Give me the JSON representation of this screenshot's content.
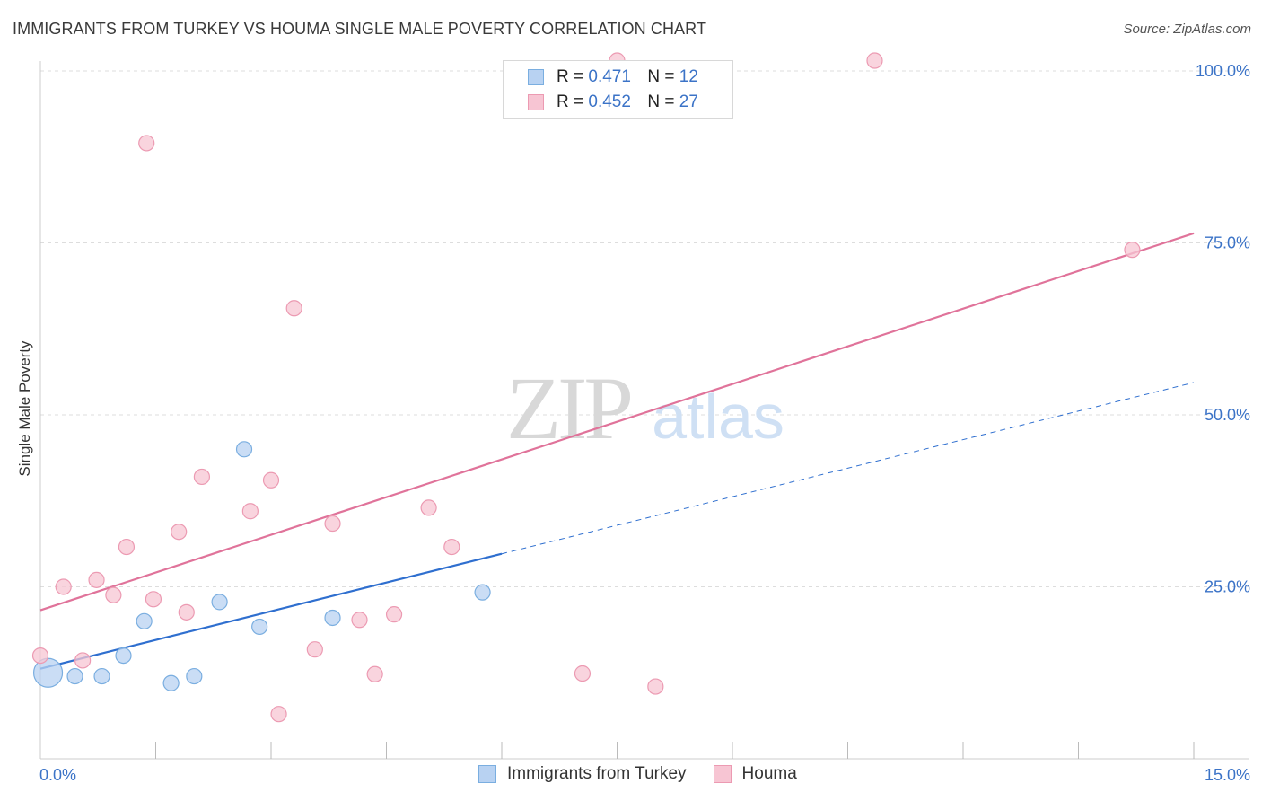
{
  "title": "IMMIGRANTS FROM TURKEY VS HOUMA SINGLE MALE POVERTY CORRELATION CHART",
  "source": "Source: ZipAtlas.com",
  "watermark": {
    "zip": "ZIP",
    "atlas": "atlas"
  },
  "legend_top": {
    "r_label": "R =",
    "n_label": "N =",
    "rows": [
      {
        "r": "0.471",
        "n": "12"
      },
      {
        "r": "0.452",
        "n": "27"
      }
    ]
  },
  "colors": {
    "blue_fill": "#b8d2f2",
    "blue_stroke": "#7aaee0",
    "blue_line": "#2f6fcf",
    "pink_fill": "#f7c5d3",
    "pink_stroke": "#ec9ab2",
    "pink_line": "#e0739a",
    "tick_label": "#3b73c7",
    "grid": "#dddddd"
  },
  "chart_data": {
    "type": "scatter",
    "title": "IMMIGRANTS FROM TURKEY VS HOUMA SINGLE MALE POVERTY CORRELATION CHART",
    "xlabel": "",
    "ylabel": "Single Male Poverty",
    "xlim": [
      0,
      15
    ],
    "ylim": [
      0,
      100
    ],
    "x_tick_labels": [
      {
        "value": 0,
        "label": "0.0%"
      },
      {
        "value": 15,
        "label": "15.0%"
      }
    ],
    "y_tick_labels": [
      {
        "value": 25,
        "label": "25.0%"
      },
      {
        "value": 50,
        "label": "50.0%"
      },
      {
        "value": 75,
        "label": "75.0%"
      },
      {
        "value": 100,
        "label": "100.0%"
      }
    ],
    "series": [
      {
        "name": "Immigrants from Turkey",
        "color": "blue",
        "points": [
          {
            "x": 0.1,
            "y": 12.5,
            "size": "large"
          },
          {
            "x": 0.45,
            "y": 12.0
          },
          {
            "x": 0.8,
            "y": 12.0
          },
          {
            "x": 1.08,
            "y": 15.0
          },
          {
            "x": 1.35,
            "y": 20.0
          },
          {
            "x": 1.7,
            "y": 11.0
          },
          {
            "x": 2.0,
            "y": 12.0
          },
          {
            "x": 2.33,
            "y": 22.8
          },
          {
            "x": 2.65,
            "y": 45.0
          },
          {
            "x": 2.85,
            "y": 19.2
          },
          {
            "x": 3.8,
            "y": 20.5
          },
          {
            "x": 5.75,
            "y": 24.2
          }
        ],
        "trend": {
          "x0": 0,
          "y0": 13.1,
          "x1": 6.0,
          "y1": 29.8,
          "dash_to_x": 15,
          "dash_to_y": 54.7
        }
      },
      {
        "name": "Houma",
        "color": "pink",
        "points": [
          {
            "x": 0.0,
            "y": 15.0
          },
          {
            "x": 0.3,
            "y": 25.0
          },
          {
            "x": 0.55,
            "y": 14.3
          },
          {
            "x": 0.73,
            "y": 26.0
          },
          {
            "x": 0.95,
            "y": 23.8
          },
          {
            "x": 1.12,
            "y": 30.8
          },
          {
            "x": 1.38,
            "y": 89.5
          },
          {
            "x": 1.47,
            "y": 23.2
          },
          {
            "x": 1.8,
            "y": 33.0
          },
          {
            "x": 1.9,
            "y": 21.3
          },
          {
            "x": 2.1,
            "y": 41.0
          },
          {
            "x": 2.73,
            "y": 36.0
          },
          {
            "x": 3.0,
            "y": 40.5
          },
          {
            "x": 3.1,
            "y": 6.5
          },
          {
            "x": 3.3,
            "y": 65.5
          },
          {
            "x": 3.57,
            "y": 15.9
          },
          {
            "x": 3.8,
            "y": 34.2
          },
          {
            "x": 4.15,
            "y": 20.2
          },
          {
            "x": 4.35,
            "y": 12.3
          },
          {
            "x": 4.6,
            "y": 21.0
          },
          {
            "x": 5.05,
            "y": 36.5
          },
          {
            "x": 5.35,
            "y": 30.8
          },
          {
            "x": 7.05,
            "y": 12.4
          },
          {
            "x": 7.5,
            "y": 101.5
          },
          {
            "x": 8.0,
            "y": 10.5
          },
          {
            "x": 10.85,
            "y": 101.5
          },
          {
            "x": 14.2,
            "y": 74.0
          }
        ],
        "trend": {
          "x0": 0,
          "y0": 21.6,
          "x1": 15,
          "y1": 76.4
        }
      }
    ],
    "legend": [
      "Immigrants from Turkey",
      "Houma"
    ],
    "grid": true
  }
}
